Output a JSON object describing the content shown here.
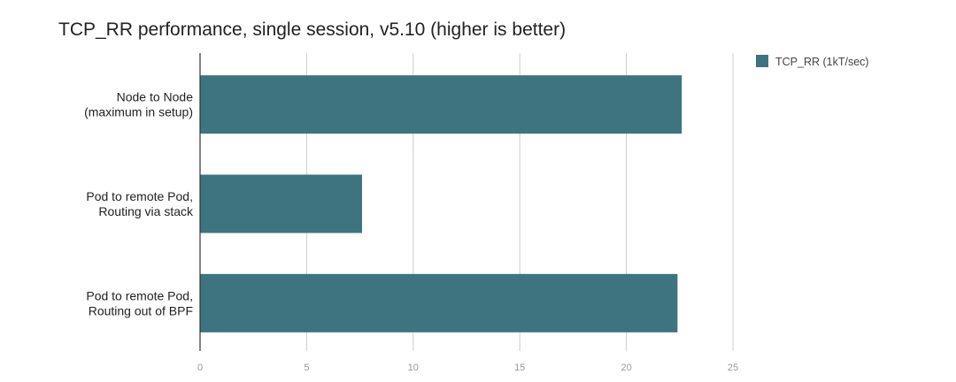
{
  "chart_data": {
    "type": "bar",
    "orientation": "horizontal",
    "title": "TCP_RR performance, single session, v5.10 (higher is better)",
    "categories": [
      [
        "Node to Node",
        "(maximum in setup)"
      ],
      [
        "Pod to remote Pod,",
        "Routing via stack"
      ],
      [
        "Pod to remote Pod,",
        "Routing out of BPF"
      ]
    ],
    "series": [
      {
        "name": "TCP_RR (1kT/sec)",
        "values": [
          22.6,
          7.6,
          22.4
        ],
        "color": "#3e7480"
      }
    ],
    "xlim": [
      0,
      25
    ],
    "x_ticks": [
      "0",
      "5",
      "10",
      "15",
      "20",
      "25"
    ],
    "grid": true,
    "legend_position": "top-right"
  }
}
